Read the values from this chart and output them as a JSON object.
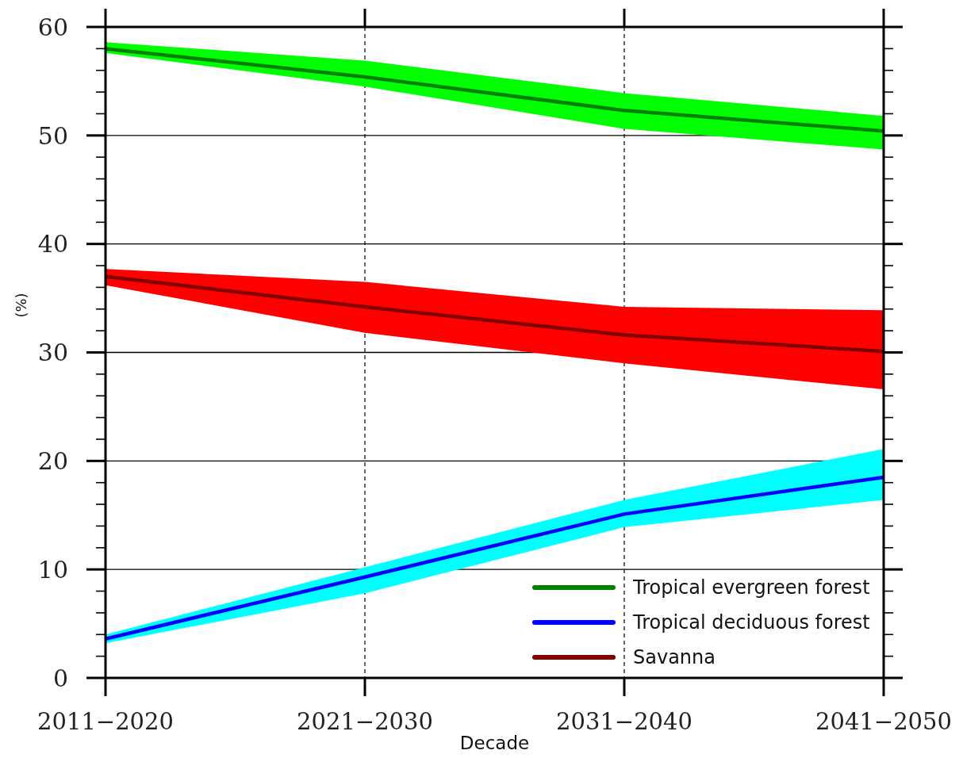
{
  "chart_data": {
    "type": "line",
    "xlabel": "Decade",
    "ylabel": "(%)",
    "categories": [
      "2011−2020",
      "2021−2030",
      "2031−2040",
      "2041−2050"
    ],
    "series": [
      {
        "name": "Tropical evergreen forest",
        "color": "#008000",
        "values": [
          58.0,
          55.4,
          52.3,
          50.4
        ],
        "lower": [
          57.6,
          54.5,
          50.6,
          48.7
        ],
        "upper": [
          58.6,
          56.9,
          53.9,
          51.8
        ]
      },
      {
        "name": "Tropical deciduous forest",
        "color": "#0000ff",
        "values": [
          3.6,
          9.3,
          15.1,
          18.5
        ],
        "lower": [
          3.2,
          7.8,
          13.9,
          16.4
        ],
        "upper": [
          4.0,
          10.2,
          16.4,
          21.1
        ]
      },
      {
        "name": "Savanna",
        "color": "#800000",
        "values": [
          37.0,
          34.2,
          31.6,
          30.1
        ],
        "lower": [
          36.2,
          31.8,
          29.0,
          26.6
        ],
        "upper": [
          37.7,
          36.5,
          34.2,
          33.9
        ]
      }
    ],
    "ylim": [
      0,
      60
    ],
    "yticks": [
      0,
      {
        "value": 2,
        "label": null
      },
      {
        "value": 4,
        "label": null
      },
      {
        "value": 6,
        "label": null
      },
      {
        "value": 8,
        "label": null
      },
      10,
      {
        "value": 12,
        "label": null
      },
      {
        "value": 14,
        "label": null
      },
      {
        "value": 16,
        "label": null
      },
      {
        "value": 18,
        "label": null
      },
      20,
      {
        "value": 22,
        "label": null
      },
      {
        "value": 24,
        "label": null
      },
      {
        "value": 26,
        "label": null
      },
      {
        "value": 28,
        "label": null
      },
      30,
      {
        "value": 32,
        "label": null
      },
      {
        "value": 34,
        "label": null
      },
      {
        "value": 36,
        "label": null
      },
      {
        "value": 38,
        "label": null
      },
      40,
      {
        "value": 42,
        "label": null
      },
      {
        "value": 44,
        "label": null
      },
      {
        "value": 46,
        "label": null
      },
      {
        "value": 48,
        "label": null
      },
      50,
      {
        "value": 52,
        "label": null
      },
      {
        "value": 54,
        "label": null
      },
      {
        "value": 56,
        "label": null
      },
      {
        "value": 58,
        "label": null
      },
      60
    ],
    "grid": true,
    "legend": "bottom right",
    "marker": "none",
    "line_style": "solid"
  }
}
